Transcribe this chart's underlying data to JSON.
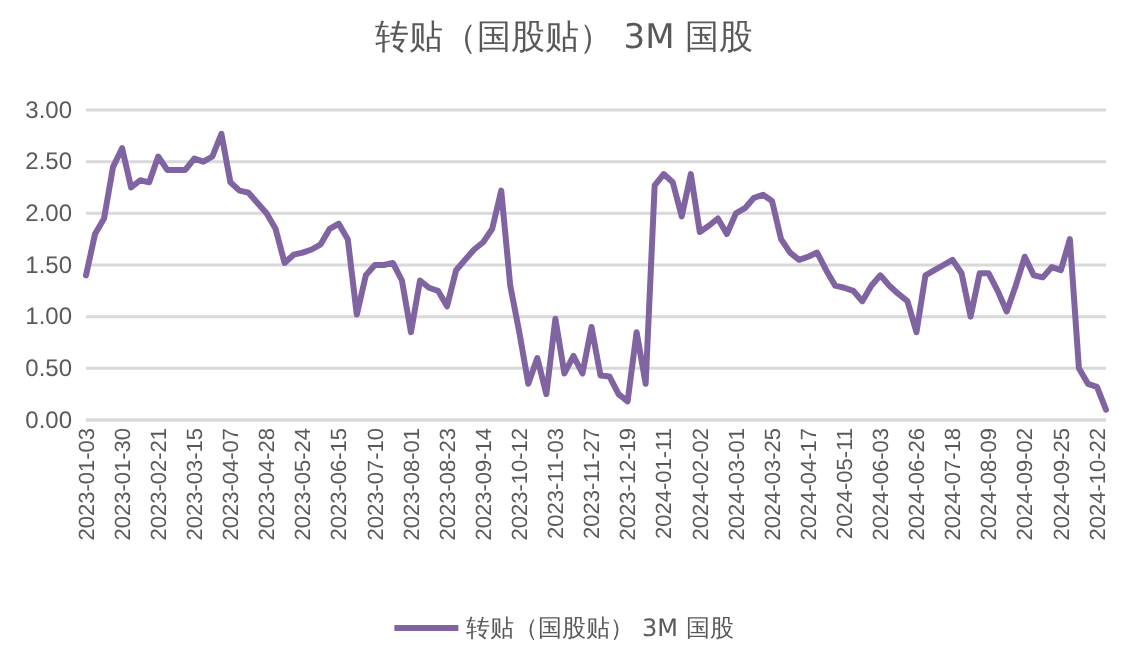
{
  "chart_data": {
    "type": "line",
    "title": "转贴（国股贴） 3M 国股",
    "categories": [
      "2023-01-03",
      null,
      null,
      null,
      "2023-01-30",
      null,
      null,
      null,
      "2023-02-21",
      null,
      null,
      null,
      "2023-03-15",
      null,
      null,
      null,
      "2023-04-07",
      null,
      null,
      null,
      "2023-04-28",
      null,
      null,
      null,
      "2023-05-24",
      null,
      null,
      null,
      "2023-06-15",
      null,
      null,
      null,
      "2023-07-10",
      null,
      null,
      null,
      "2023-08-01",
      null,
      null,
      null,
      "2023-08-23",
      null,
      null,
      null,
      "2023-09-14",
      null,
      null,
      null,
      "2023-10-12",
      null,
      null,
      null,
      "2023-11-03",
      null,
      null,
      null,
      "2023-11-27",
      null,
      null,
      null,
      "2023-12-19",
      null,
      null,
      null,
      "2024-01-11",
      null,
      null,
      null,
      "2024-02-02",
      null,
      null,
      null,
      "2024-03-01",
      null,
      null,
      null,
      "2024-03-25",
      null,
      null,
      null,
      "2024-04-17",
      null,
      null,
      null,
      "2024-05-11",
      null,
      null,
      null,
      "2024-06-03",
      null,
      null,
      null,
      "2024-06-26",
      null,
      null,
      null,
      "2024-07-18",
      null,
      null,
      null,
      "2024-08-09",
      null,
      null,
      null,
      "2024-09-02",
      null,
      null,
      null,
      "2024-09-25",
      null,
      null,
      null,
      "2024-10-22",
      null
    ],
    "series": [
      {
        "name": "转贴（国股贴） 3M 国股",
        "color": "#8064a2",
        "values": [
          1.4,
          1.8,
          1.95,
          2.45,
          2.63,
          2.25,
          2.32,
          2.3,
          2.55,
          2.42,
          2.42,
          2.42,
          2.53,
          2.5,
          2.55,
          2.77,
          2.3,
          2.22,
          2.2,
          2.1,
          2.0,
          1.85,
          1.52,
          1.6,
          1.62,
          1.65,
          1.7,
          1.85,
          1.9,
          1.75,
          1.02,
          1.4,
          1.5,
          1.5,
          1.52,
          1.35,
          0.85,
          1.35,
          1.28,
          1.25,
          1.1,
          1.45,
          1.55,
          1.65,
          1.72,
          1.85,
          2.22,
          1.3,
          0.85,
          0.35,
          0.6,
          0.25,
          0.98,
          0.45,
          0.62,
          0.45,
          0.9,
          0.43,
          0.42,
          0.25,
          0.18,
          0.85,
          0.35,
          2.27,
          2.38,
          2.3,
          1.97,
          2.38,
          1.82,
          1.88,
          1.95,
          1.8,
          2.0,
          2.05,
          2.15,
          2.18,
          2.12,
          1.75,
          1.62,
          1.55,
          1.58,
          1.62,
          1.45,
          1.3,
          1.28,
          1.25,
          1.15,
          1.3,
          1.4,
          1.3,
          1.22,
          1.15,
          0.85,
          1.4,
          1.45,
          1.5,
          1.55,
          1.42,
          1.0,
          1.42,
          1.42,
          1.25,
          1.05,
          1.3,
          1.58,
          1.4,
          1.38,
          1.48,
          1.45,
          1.75,
          0.5,
          0.35,
          0.32,
          0.1
        ]
      }
    ],
    "ylim": [
      0,
      3
    ],
    "yticks": [
      {
        "value": 0,
        "label": "0.00"
      },
      {
        "value": 0.5,
        "label": "0.50"
      },
      {
        "value": 1,
        "label": "1.00"
      },
      {
        "value": 1.5,
        "label": "1.50"
      },
      {
        "value": 2,
        "label": "2.00"
      },
      {
        "value": 2.5,
        "label": "2.50"
      },
      {
        "value": 3,
        "label": "3.00"
      }
    ],
    "grid": "y",
    "legend": "bottom",
    "marker": "none",
    "line_style": "solid"
  }
}
